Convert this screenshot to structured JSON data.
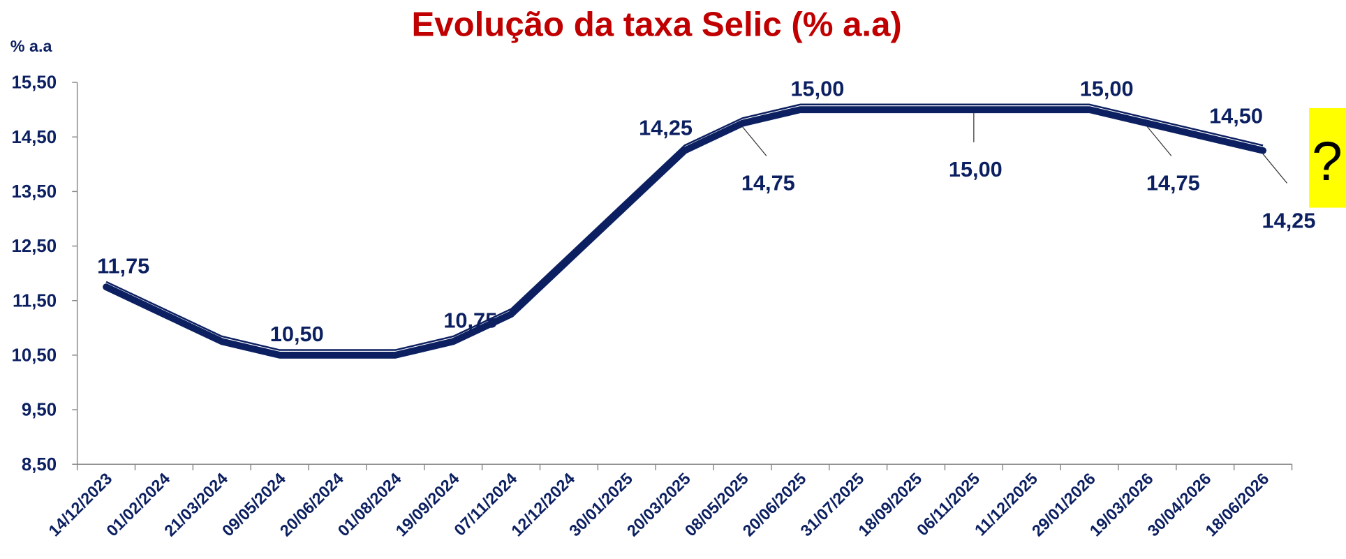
{
  "chart_data": {
    "type": "line",
    "title": "Evolução da taxa Selic (% a.a)",
    "y_axis_label": "% a.a",
    "annotation": "?",
    "categories": [
      "14/12/2023",
      "01/02/2024",
      "21/03/2024",
      "09/05/2024",
      "20/06/2024",
      "01/08/2024",
      "19/09/2024",
      "07/11/2024",
      "12/12/2024",
      "30/01/2025",
      "20/03/2025",
      "08/05/2025",
      "20/06/2025",
      "31/07/2025",
      "18/09/2025",
      "06/11/2025",
      "11/12/2025",
      "29/01/2026",
      "19/03/2026",
      "30/04/2026",
      "18/06/2026"
    ],
    "series": [
      {
        "name": "Selic",
        "color": "#0c2061",
        "values": [
          11.75,
          11.25,
          10.75,
          10.5,
          10.5,
          10.5,
          10.75,
          11.25,
          12.25,
          13.25,
          14.25,
          14.75,
          15.0,
          15.0,
          15.0,
          15.0,
          15.0,
          15.0,
          14.75,
          14.5,
          14.25
        ],
        "value_labels": [
          "11,75",
          null,
          null,
          "10,50",
          null,
          null,
          "10,75",
          null,
          null,
          null,
          "14,25",
          "14,75",
          "15,00",
          null,
          null,
          "15,00",
          null,
          "15,00",
          "14,75",
          "14,50",
          "14,25"
        ]
      }
    ],
    "ylim": [
      8.5,
      15.5
    ],
    "yticks": [
      {
        "value": 8.5,
        "label": "8,50"
      },
      {
        "value": 9.5,
        "label": "9,50"
      },
      {
        "value": 10.5,
        "label": "10,50"
      },
      {
        "value": 11.5,
        "label": "11,50"
      },
      {
        "value": 12.5,
        "label": "12,50"
      },
      {
        "value": 13.5,
        "label": "13,50"
      },
      {
        "value": 14.5,
        "label": "14,50"
      },
      {
        "value": 15.5,
        "label": "15,50"
      }
    ]
  }
}
